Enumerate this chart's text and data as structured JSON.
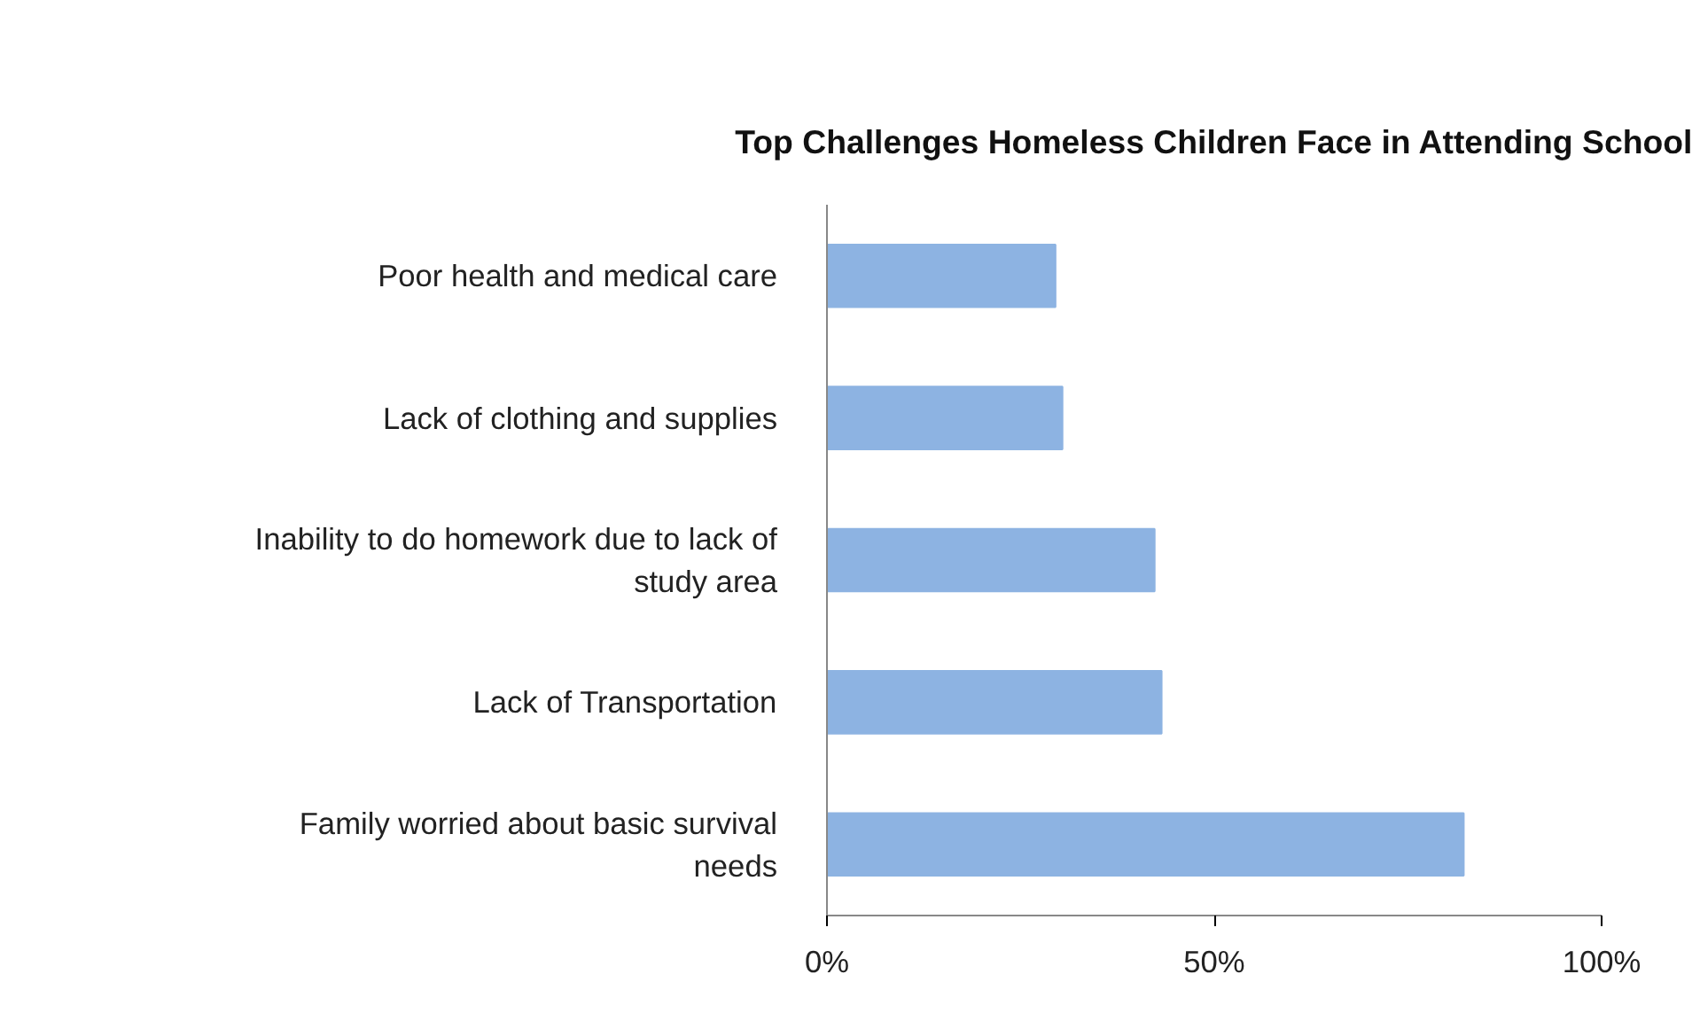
{
  "chart_data": {
    "type": "bar",
    "orientation": "horizontal",
    "title": "Top Challenges Homeless Children Face in Attending School",
    "categories": [
      "Poor health and medical care",
      "Lack of clothing and supplies",
      "Inability to do homework due to lack of study area",
      "Lack of Transportation",
      "Family worried about basic survival needs"
    ],
    "values": [
      0.295,
      0.304,
      0.423,
      0.432,
      0.822
    ],
    "color": "#8db3e2",
    "xlim": [
      0,
      1
    ],
    "xticks": [
      {
        "value": 0,
        "label": "0%"
      },
      {
        "value": 0.5,
        "label": "50%"
      },
      {
        "value": 1,
        "label": "100%"
      }
    ],
    "grid": false
  }
}
